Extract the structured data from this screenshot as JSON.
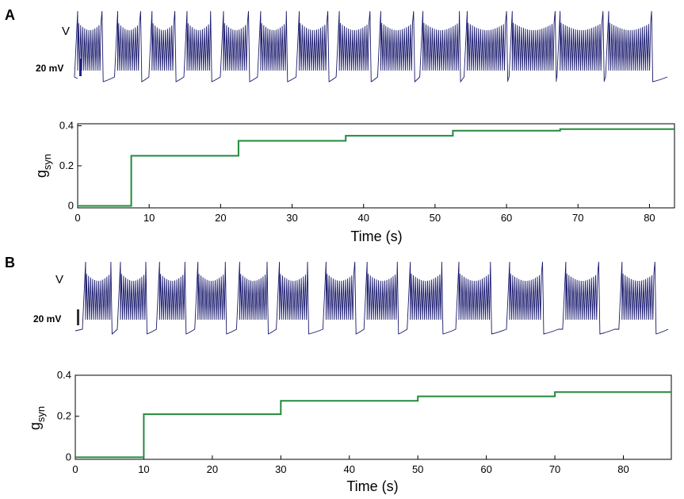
{
  "colors": {
    "voltage_trace": "#1a1a6e",
    "gsyn_line": "#228b3c",
    "axes": "#000000",
    "scalebar_A": "#23238c",
    "scalebar_B": "#333333"
  },
  "panels": [
    {
      "label": "A",
      "voltage": {
        "label": "V",
        "scalebar_label": "20 mV",
        "burst_starts_s": [
          0,
          5.6,
          10.4,
          15.3,
          20.4,
          25.6,
          31.0,
          36.6,
          42.4,
          48.3,
          54.5,
          60.8,
          67.5,
          74.3
        ],
        "burst_duration_s": [
          3.4,
          3.2,
          3.2,
          3.3,
          3.5,
          3.6,
          4.0,
          4.3,
          4.6,
          5.1,
          5.5,
          6.0,
          6.0,
          6.0
        ],
        "time_max_s": 83.5
      },
      "chart_data": {
        "type": "line",
        "title": "",
        "xlabel": "Time (s)",
        "ylabel": "g_syn",
        "ylabel_main": "g",
        "ylabel_sub": "syn",
        "xlim": [
          0,
          83.5
        ],
        "ylim": [
          -0.01,
          0.41
        ],
        "xticks": [
          0,
          10,
          20,
          30,
          40,
          50,
          60,
          70,
          80
        ],
        "xtick_labels": [
          "0",
          "10",
          "20",
          "30",
          "40",
          "50",
          "60",
          "70",
          "80"
        ],
        "yticks": [
          0,
          0.2,
          0.4
        ],
        "ytick_labels": [
          "0",
          "0.2",
          "0.4"
        ],
        "grid": false,
        "series": [
          {
            "x": [
              0,
              7.5,
              7.5,
              22.5,
              22.5,
              37.5,
              37.5,
              52.5,
              52.5,
              67.5,
              67.5,
              83.5
            ],
            "y": [
              0,
              0,
              0.25,
              0.25,
              0.325,
              0.325,
              0.35,
              0.35,
              0.375,
              0.375,
              0.383,
              0.383
            ]
          }
        ]
      }
    },
    {
      "label": "B",
      "voltage": {
        "label": "V",
        "scalebar_label": "20 mV",
        "burst_starts_s": [
          1.5,
          6.6,
          12.3,
          17.9,
          24.0,
          29.8,
          36.6,
          42.6,
          48.9,
          56.0,
          63.4,
          71.6,
          79.8
        ],
        "burst_duration_s": [
          3.7,
          3.7,
          3.7,
          4.0,
          4.0,
          4.1,
          4.2,
          4.4,
          4.6,
          4.6,
          4.8,
          4.8,
          4.8
        ],
        "time_max_s": 87
      },
      "chart_data": {
        "type": "line",
        "title": "",
        "xlabel": "Time (s)",
        "ylabel": "g_syn",
        "ylabel_main": "g",
        "ylabel_sub": "syn",
        "xlim": [
          0,
          87
        ],
        "ylim": [
          -0.01,
          0.4
        ],
        "xticks": [
          0,
          10,
          20,
          30,
          40,
          50,
          60,
          70,
          80
        ],
        "xtick_labels": [
          "0",
          "10",
          "20",
          "30",
          "40",
          "50",
          "60",
          "70",
          "80"
        ],
        "yticks": [
          0,
          0.2,
          0.4
        ],
        "ytick_labels": [
          "0",
          "0.2",
          "0.4"
        ],
        "grid": false,
        "series": [
          {
            "x": [
              0,
              10,
              10,
              30,
              30,
              50,
              50,
              70,
              70,
              87
            ],
            "y": [
              0,
              0,
              0.21,
              0.21,
              0.275,
              0.275,
              0.297,
              0.297,
              0.318,
              0.318
            ]
          }
        ]
      }
    }
  ]
}
